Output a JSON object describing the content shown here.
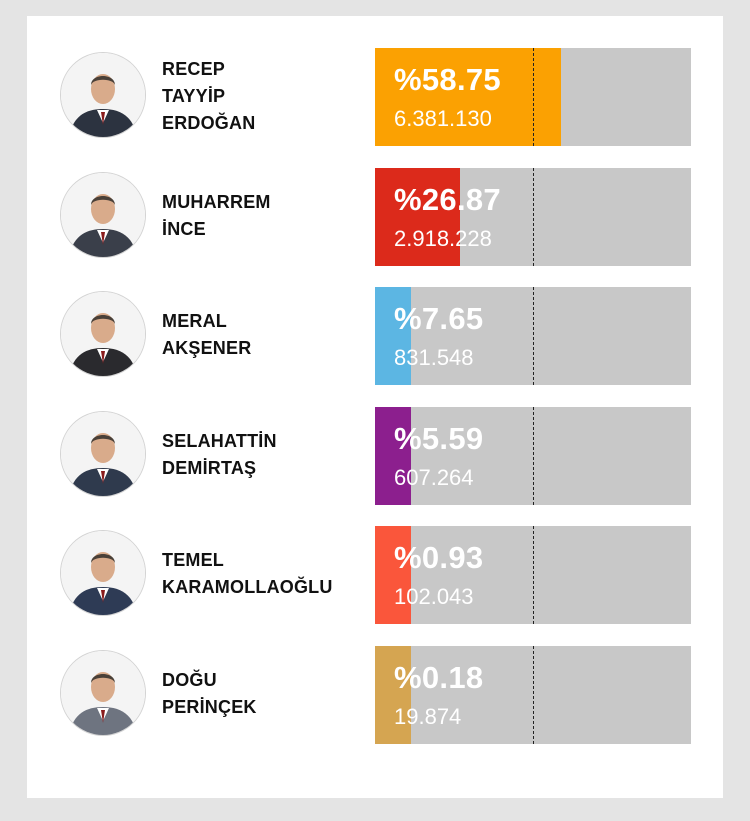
{
  "chart_data": {
    "type": "bar",
    "orientation": "horizontal",
    "categories": [
      "RECEP TAYYİP ERDOĞAN",
      "MUHARREM İNCE",
      "MERAL AKŞENER",
      "SELAHATTİN DEMİRTAŞ",
      "TEMEL KARAMOLLAOĞLU",
      "DOĞU PERİNÇEK"
    ],
    "xlim": [
      0,
      100
    ],
    "reference_line": 50,
    "series": [
      {
        "values": [
          58.75,
          26.87,
          7.65,
          5.59,
          0.93,
          0.18
        ]
      }
    ],
    "candidates": [
      {
        "name_lines": [
          "RECEP",
          "TAYYİP",
          "ERDOĞAN"
        ],
        "percent_label": "%58.75",
        "percent": 58.75,
        "votes_label": "6.381.130",
        "color": "#fba102",
        "avatar_icon": "portrait-icon"
      },
      {
        "name_lines": [
          "MUHARREM",
          "İNCE"
        ],
        "percent_label": "%26.87",
        "percent": 26.87,
        "votes_label": "2.918.228",
        "color": "#dc2a1b",
        "avatar_icon": "portrait-icon"
      },
      {
        "name_lines": [
          "MERAL",
          "AKŞENER"
        ],
        "percent_label": "%7.65",
        "percent": 7.65,
        "votes_label": "831.548",
        "color": "#5cb6e3",
        "avatar_icon": "portrait-icon"
      },
      {
        "name_lines": [
          "SELAHATTİN",
          "DEMİRTAŞ"
        ],
        "percent_label": "%5.59",
        "percent": 5.59,
        "votes_label": "607.264",
        "color": "#8c1f8e",
        "avatar_icon": "portrait-icon"
      },
      {
        "name_lines": [
          "TEMEL",
          "KARAMOLLAOĞLU"
        ],
        "percent_label": "%0.93",
        "percent": 0.93,
        "votes_label": "102.043",
        "color": "#fa563b",
        "avatar_icon": "portrait-icon"
      },
      {
        "name_lines": [
          "DOĞU",
          "PERİNÇEK"
        ],
        "percent_label": "%0.18",
        "percent": 0.18,
        "votes_label": "19.874",
        "color": "#d5a551",
        "avatar_icon": "portrait-icon"
      }
    ]
  },
  "style": {
    "track_color": "#c8c8c8",
    "min_fill_percent": 11.5
  }
}
